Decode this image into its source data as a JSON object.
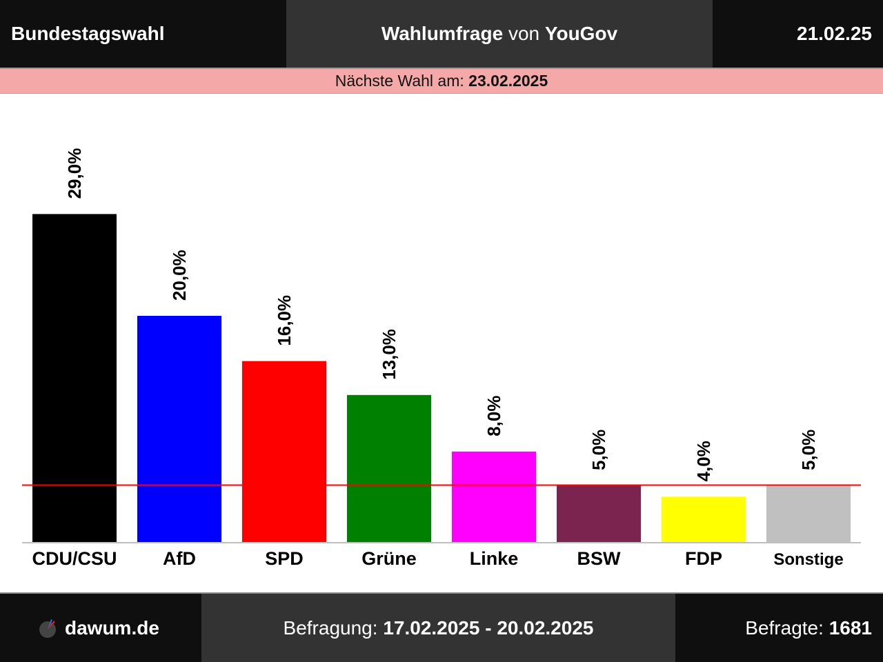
{
  "header": {
    "left": "Bundestagswahl",
    "title_bold": "Wahlumfrage",
    "title_von": "von",
    "institute": "YouGov",
    "date": "21.02.25"
  },
  "election_bar": {
    "label": "Nächste Wahl am:",
    "date": "23.02.2025"
  },
  "footer": {
    "brand": "dawum.de",
    "survey_label": "Befragung:",
    "survey_range": "17.02.2025 - 20.02.2025",
    "respondents_label": "Befragte:",
    "respondents": "1681"
  },
  "chart_data": {
    "type": "bar",
    "categories": [
      "CDU/CSU",
      "AfD",
      "SPD",
      "Grüne",
      "Linke",
      "BSW",
      "FDP",
      "Sonstige"
    ],
    "values": [
      29.0,
      20.0,
      16.0,
      13.0,
      8.0,
      5.0,
      4.0,
      5.0
    ],
    "value_labels": [
      "29,0%",
      "20,0%",
      "16,0%",
      "13,0%",
      "8,0%",
      "5,0%",
      "4,0%",
      "5,0%"
    ],
    "colors": [
      "#000000",
      "#0000ff",
      "#ff0000",
      "#008000",
      "#ff00ff",
      "#7b2450",
      "#ffff00",
      "#c0c0c0"
    ],
    "threshold": 5.0,
    "threshold_color": "#ff0000",
    "title": "",
    "xlabel": "",
    "ylabel": "",
    "grid": false
  }
}
